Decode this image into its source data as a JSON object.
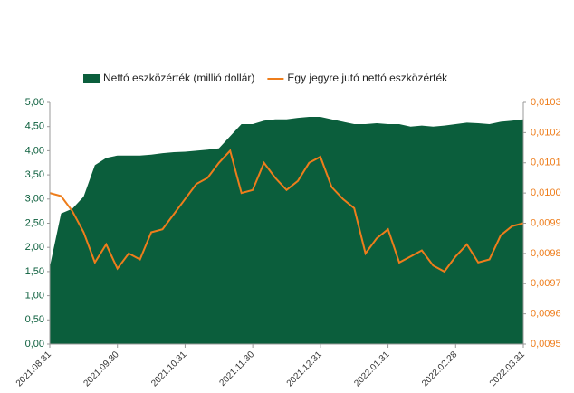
{
  "chart_data": {
    "type": "area-line",
    "categories": [
      "2021.08.31",
      null,
      null,
      null,
      null,
      null,
      "2021.09.30",
      null,
      null,
      null,
      null,
      null,
      "2021.10.31",
      null,
      null,
      null,
      null,
      null,
      "2021.11.30",
      null,
      null,
      null,
      null,
      null,
      "2021.12.31",
      null,
      null,
      null,
      null,
      null,
      "2022.01.31",
      null,
      null,
      null,
      null,
      null,
      "2022.02.28",
      null,
      null,
      null,
      null,
      null,
      "2022.03.31"
    ],
    "series": [
      {
        "name": "Nettó eszközérték (millió dollár)",
        "color": "#0b5e3c",
        "kind": "area",
        "values": [
          1.6,
          2.7,
          2.8,
          3.05,
          3.7,
          3.85,
          3.9,
          3.9,
          3.9,
          3.92,
          3.95,
          3.97,
          3.98,
          4.0,
          4.02,
          4.05,
          4.3,
          4.55,
          4.55,
          4.62,
          4.65,
          4.65,
          4.68,
          4.7,
          4.7,
          4.65,
          4.6,
          4.55,
          4.55,
          4.57,
          4.55,
          4.55,
          4.5,
          4.52,
          4.5,
          4.52,
          4.55,
          4.58,
          4.57,
          4.55,
          4.6,
          4.62,
          4.65
        ]
      },
      {
        "name": "Egy jegyre jutó nettó eszközérték",
        "color": "#ee7d1b",
        "kind": "line",
        "axis": "y2",
        "values": [
          0.01,
          0.00999,
          0.00994,
          0.00987,
          0.00977,
          0.00983,
          0.00975,
          0.0098,
          0.00978,
          0.00987,
          0.00988,
          0.00993,
          0.00998,
          0.01003,
          0.01005,
          0.0101,
          0.01014,
          0.01,
          0.01001,
          0.0101,
          0.01005,
          0.01001,
          0.01004,
          0.0101,
          0.01012,
          0.01002,
          0.00998,
          0.00995,
          0.0098,
          0.00985,
          0.00988,
          0.00977,
          0.00979,
          0.00981,
          0.00976,
          0.00974,
          0.00979,
          0.00983,
          0.00977,
          0.00978,
          0.00986,
          0.00989,
          0.0099
        ]
      }
    ],
    "ylim": [
      0,
      5
    ],
    "yticks": [
      {
        "value": 0,
        "label": "0,00"
      },
      {
        "value": 0.5,
        "label": "0,50"
      },
      {
        "value": 1,
        "label": "1,00"
      },
      {
        "value": 1.5,
        "label": "1,50"
      },
      {
        "value": 2,
        "label": "2,00"
      },
      {
        "value": 2.5,
        "label": "2,50"
      },
      {
        "value": 3,
        "label": "3,00"
      },
      {
        "value": 3.5,
        "label": "3,50"
      },
      {
        "value": 4,
        "label": "4,00"
      },
      {
        "value": 4.5,
        "label": "4,50"
      },
      {
        "value": 5,
        "label": "5,00"
      }
    ],
    "y2lim": [
      0.0095,
      0.0103
    ],
    "y2ticks": [
      {
        "value": 0.0095,
        "label": "0,0095"
      },
      {
        "value": 0.0096,
        "label": "0,0096"
      },
      {
        "value": 0.0097,
        "label": "0,0097"
      },
      {
        "value": 0.0098,
        "label": "0,0098"
      },
      {
        "value": 0.0099,
        "label": "0,0099"
      },
      {
        "value": 0.01,
        "label": "0,0100"
      },
      {
        "value": 0.0101,
        "label": "0,0101"
      },
      {
        "value": 0.0102,
        "label": "0,0102"
      },
      {
        "value": 0.0103,
        "label": "0,0103"
      }
    ],
    "legend": "top"
  }
}
